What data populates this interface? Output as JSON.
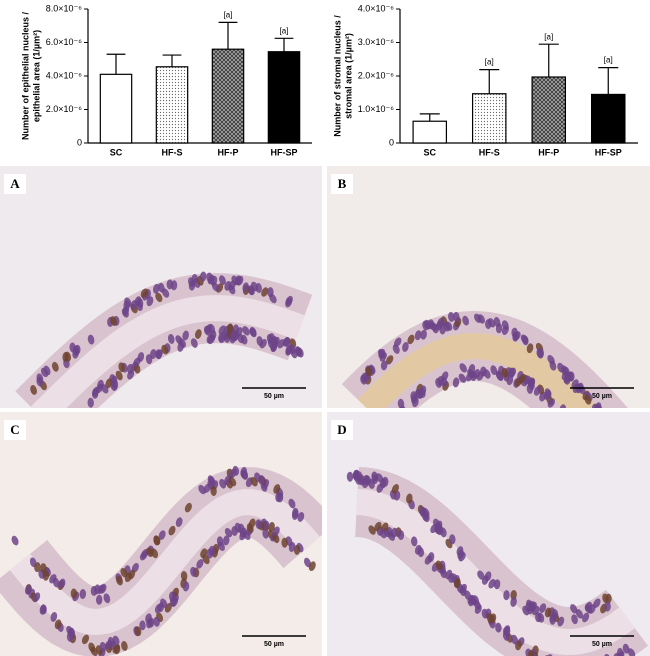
{
  "chart_data": [
    {
      "type": "bar",
      "ylabel": [
        "Number of epithelial nucleus /",
        "epithelial area (1/µm²)"
      ],
      "categories": [
        "SC",
        "HF-S",
        "HF-P",
        "HF-SP"
      ],
      "values": [
        4.1e-06,
        4.55e-06,
        5.6e-06,
        5.45e-06
      ],
      "errors": [
        1.2e-06,
        7e-07,
        1.6e-06,
        8e-07
      ],
      "significance": [
        null,
        null,
        "[a]",
        "[a]"
      ],
      "bar_styles": [
        "white",
        "dots",
        "crosshatch",
        "black"
      ],
      "ylim": [
        0,
        8e-06
      ],
      "yticks": [
        0,
        {
          "value": 2e-06,
          "label": "2.0×10⁻⁶"
        },
        {
          "value": 4e-06,
          "label": "4.0×10⁻⁶"
        },
        {
          "value": 6e-06,
          "label": "6.0×10⁻⁶"
        },
        {
          "value": 8e-06,
          "label": "8.0×10⁻⁶"
        }
      ]
    },
    {
      "type": "bar",
      "ylabel": [
        "Number of stromal nucleus /",
        "stromal area (1/µm²)"
      ],
      "categories": [
        "SC",
        "HF-S",
        "HF-P",
        "HF-SP"
      ],
      "values": [
        6.5e-07,
        1.47e-06,
        1.97e-06,
        1.45e-06
      ],
      "errors": [
        2.2e-07,
        7.2e-07,
        9.8e-07,
        8e-07
      ],
      "significance": [
        null,
        "[a]",
        "[a]",
        "[a]"
      ],
      "bar_styles": [
        "white",
        "dots",
        "crosshatch",
        "black"
      ],
      "ylim": [
        0,
        4e-06
      ],
      "yticks": [
        0,
        {
          "value": 1e-06,
          "label": "1.0×10⁻⁶"
        },
        {
          "value": 2e-06,
          "label": "2.0×10⁻⁶"
        },
        {
          "value": 3e-06,
          "label": "3.0×10⁻⁶"
        },
        {
          "value": 4e-06,
          "label": "4.0×10⁻⁶"
        }
      ]
    }
  ],
  "panels": [
    {
      "letter": "A",
      "scale": "50 µm"
    },
    {
      "letter": "B",
      "scale": "50 µm"
    },
    {
      "letter": "C",
      "scale": "50 µm"
    },
    {
      "letter": "D",
      "scale": "50 µm"
    }
  ]
}
